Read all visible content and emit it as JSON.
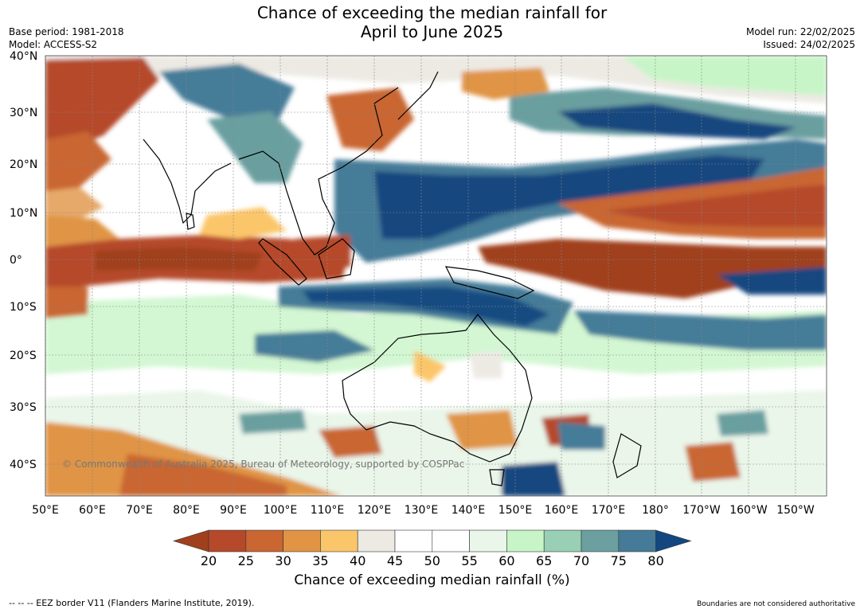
{
  "title_line1": "Chance of exceeding the median rainfall for",
  "title_line2": "April to June 2025",
  "base_period": "Base period: 1981-2018",
  "model": "Model: ACCESS-S2",
  "model_run": "Model run: 22/02/2025",
  "issued": "Issued: 24/02/2025",
  "copyright": "© Commonwealth of Australia 2025, Bureau of Meteorology, supported by COSPPac",
  "lat_labels": [
    "40°N",
    "30°N",
    "20°N",
    "10°N",
    "0°",
    "10°S",
    "20°S",
    "30°S",
    "40°S"
  ],
  "lon_labels": [
    "50°E",
    "60°E",
    "70°E",
    "80°E",
    "90°E",
    "100°E",
    "110°E",
    "120°E",
    "130°E",
    "140°E",
    "150°E",
    "160°E",
    "170°E",
    "180°",
    "170°W",
    "160°W",
    "150°W"
  ],
  "colorbar": {
    "label": "Chance of exceeding median rainfall (%)",
    "ticks": [
      "20",
      "25",
      "30",
      "35",
      "40",
      "45",
      "50",
      "55",
      "60",
      "65",
      "70",
      "75",
      "80"
    ],
    "colors": [
      "#a0401c",
      "#b5492a",
      "#c96632",
      "#e09444",
      "#fbc66a",
      "#edeae4",
      "#ffffff",
      "#ffffff",
      "#eaf6ea",
      "#c8f5c8",
      "#99cfb5",
      "#6b9fa0",
      "#457b98",
      "#12477f"
    ]
  },
  "footer_left": "--  --  -- EEZ border V11 (Flanders Marine Institute, 2019).",
  "footer_right": "Boundaries are not considered authoritative",
  "regions": [
    {
      "name": "equatorial-indian-dry",
      "category": "25-30"
    },
    {
      "name": "equatorial-pacific-dry",
      "category": "20-25"
    },
    {
      "name": "north-pacific-dry",
      "category": "25-30"
    },
    {
      "name": "philippine-sea-wet",
      "category": "80+"
    },
    {
      "name": "south-pacific-wet",
      "category": "75-80"
    },
    {
      "name": "australia-neutral",
      "category": "45-55"
    }
  ]
}
